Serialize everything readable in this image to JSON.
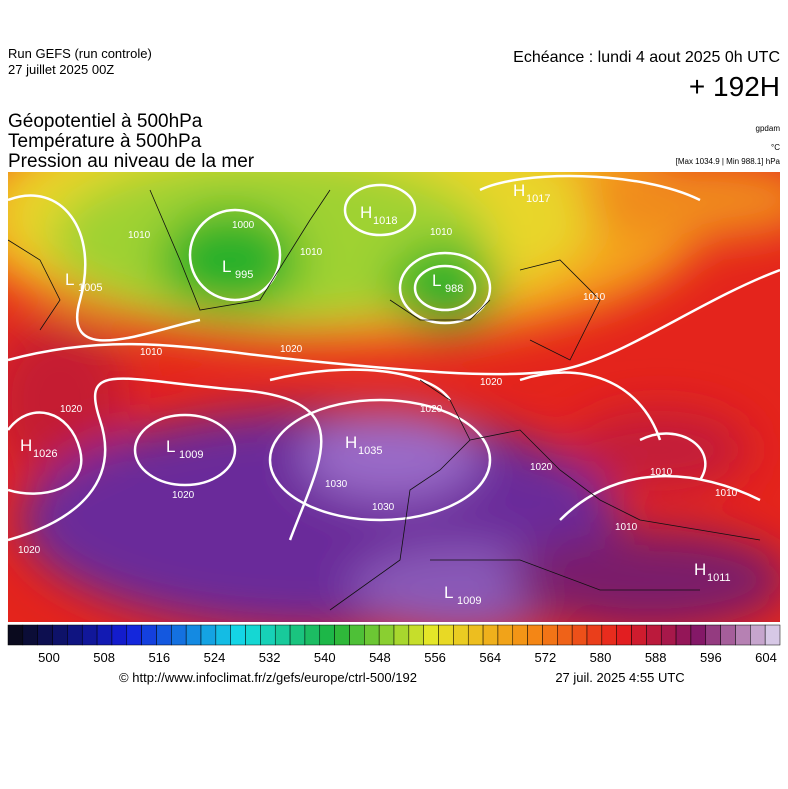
{
  "header": {
    "run": "Run GEFS (run controle)",
    "run_date": "27 juillet 2025 00Z",
    "valid": "Echéance : lundi 4 aout 2025 0h UTC",
    "lead": "+ 192H",
    "fields": [
      "Géopotentiel à 500hPa",
      "Température à 500hPa",
      "Pression au niveau de la mer"
    ],
    "units": [
      "gpdam",
      "°C",
      "[Max 1034.9 | Min 988.1] hPa"
    ]
  },
  "map": {
    "centers": [
      {
        "letter": "H",
        "value": "1018"
      },
      {
        "letter": "H",
        "value": "1017"
      },
      {
        "letter": "L",
        "value": "995"
      },
      {
        "letter": "L",
        "value": "988"
      },
      {
        "letter": "L",
        "value": "1005"
      },
      {
        "letter": "H",
        "value": "1026"
      },
      {
        "letter": "L",
        "value": "1009"
      },
      {
        "letter": "H",
        "value": "1035"
      },
      {
        "letter": "L",
        "value": "1009"
      },
      {
        "letter": "H",
        "value": "1011"
      }
    ],
    "isobar_labels": [
      1010,
      1000,
      1010,
      1010,
      1010,
      1020,
      1010,
      1020,
      1020,
      1030,
      1020,
      1030,
      1020,
      1020,
      1020,
      1010,
      1010,
      1010
    ]
  },
  "colorbar": {
    "ticks": [
      500,
      508,
      516,
      524,
      532,
      540,
      548,
      556,
      564,
      572,
      580,
      588,
      596,
      604
    ]
  },
  "footer": {
    "source": "© http://www.infoclimat.fr/z/gefs/europe/ctrl-500/192",
    "created": "27 juil. 2025  4:55 UTC"
  }
}
